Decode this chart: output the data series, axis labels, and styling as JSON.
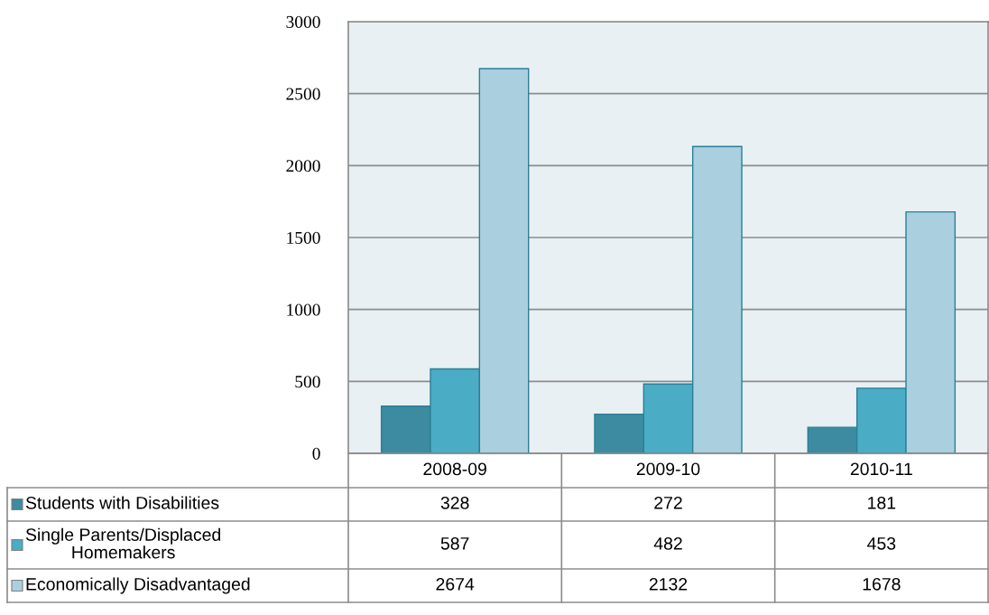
{
  "chart_data": {
    "type": "bar",
    "categories": [
      "2008-09",
      "2009-10",
      "2010-11"
    ],
    "series": [
      {
        "name": "Students with Disabilities",
        "color": "#3d8ba1",
        "values": [
          328,
          272,
          181
        ]
      },
      {
        "name": "Single Parents/Displaced\nHomemakers",
        "color": "#4bacc6",
        "values": [
          587,
          482,
          453
        ]
      },
      {
        "name": "Economically Disadvantaged",
        "color": "#aacfdf",
        "values": [
          2674,
          2132,
          1678
        ]
      }
    ],
    "ylim": [
      0,
      3000
    ],
    "yticks": [
      0,
      500,
      1000,
      1500,
      2000,
      2500,
      3000
    ],
    "grid": "y",
    "data_labels": true,
    "legend": "bottom"
  }
}
